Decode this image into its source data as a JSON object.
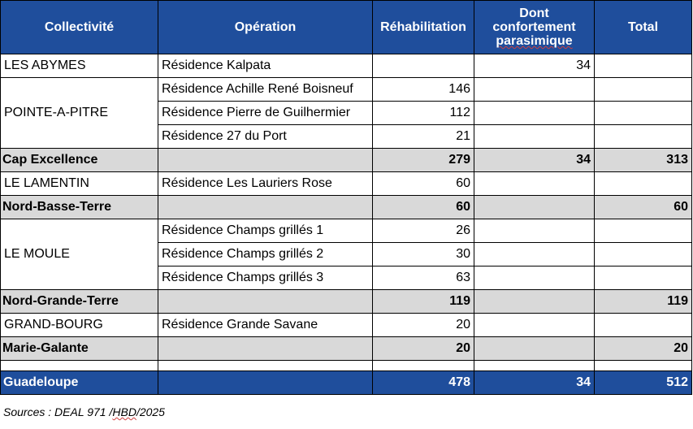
{
  "headers": {
    "collectivite": "Collectivité",
    "operation": "Opération",
    "rehabilitation": "Réhabilitation",
    "dont_1": "Dont",
    "dont_2": "confortement",
    "dont_3": "parasimique",
    "total": "Total"
  },
  "rows": {
    "abymes": {
      "collectivite": "LES ABYMES",
      "operation": "Résidence Kalpata",
      "rehab": "",
      "dont": "34",
      "total": ""
    },
    "pap1": {
      "collectivite": "POINTE-A-PITRE",
      "operation": "Résidence Achille René Boisneuf",
      "rehab": "146",
      "dont": "",
      "total": ""
    },
    "pap2": {
      "operation": "Résidence Pierre de Guilhermier",
      "rehab": "112",
      "dont": "",
      "total": ""
    },
    "pap3": {
      "operation": "Résidence 27 du Port",
      "rehab": "21",
      "dont": "",
      "total": ""
    },
    "cap": {
      "label": "Cap Excellence",
      "rehab": "279",
      "dont": "34",
      "total": "313"
    },
    "lamentin": {
      "collectivite": "LE LAMENTIN",
      "operation": "Résidence Les Lauriers Rose",
      "rehab": "60",
      "dont": "",
      "total": ""
    },
    "nbt": {
      "label": "Nord-Basse-Terre",
      "rehab": "60",
      "dont": "",
      "total": "60"
    },
    "moule1": {
      "collectivite": "LE MOULE",
      "operation": "Résidence Champs grillés 1",
      "rehab": "26",
      "dont": "",
      "total": ""
    },
    "moule2": {
      "operation": "Résidence Champs grillés 2",
      "rehab": "30",
      "dont": "",
      "total": ""
    },
    "moule3": {
      "operation": "Résidence Champs grillés 3",
      "rehab": "63",
      "dont": "",
      "total": ""
    },
    "ngt": {
      "label": "Nord-Grande-Terre",
      "rehab": "119",
      "dont": "",
      "total": "119"
    },
    "gbourg": {
      "collectivite": "GRAND-BOURG",
      "operation": "Résidence Grande Savane",
      "rehab": "20",
      "dont": "",
      "total": ""
    },
    "mg": {
      "label": "Marie-Galante",
      "rehab": "20",
      "dont": "",
      "total": "20"
    },
    "guadeloupe": {
      "label": "Guadeloupe",
      "rehab": "478",
      "dont": "34",
      "total": "512"
    }
  },
  "source": {
    "prefix": "Sources : DEAL 971 /",
    "underlined": "HBD",
    "suffix": "/2025"
  }
}
